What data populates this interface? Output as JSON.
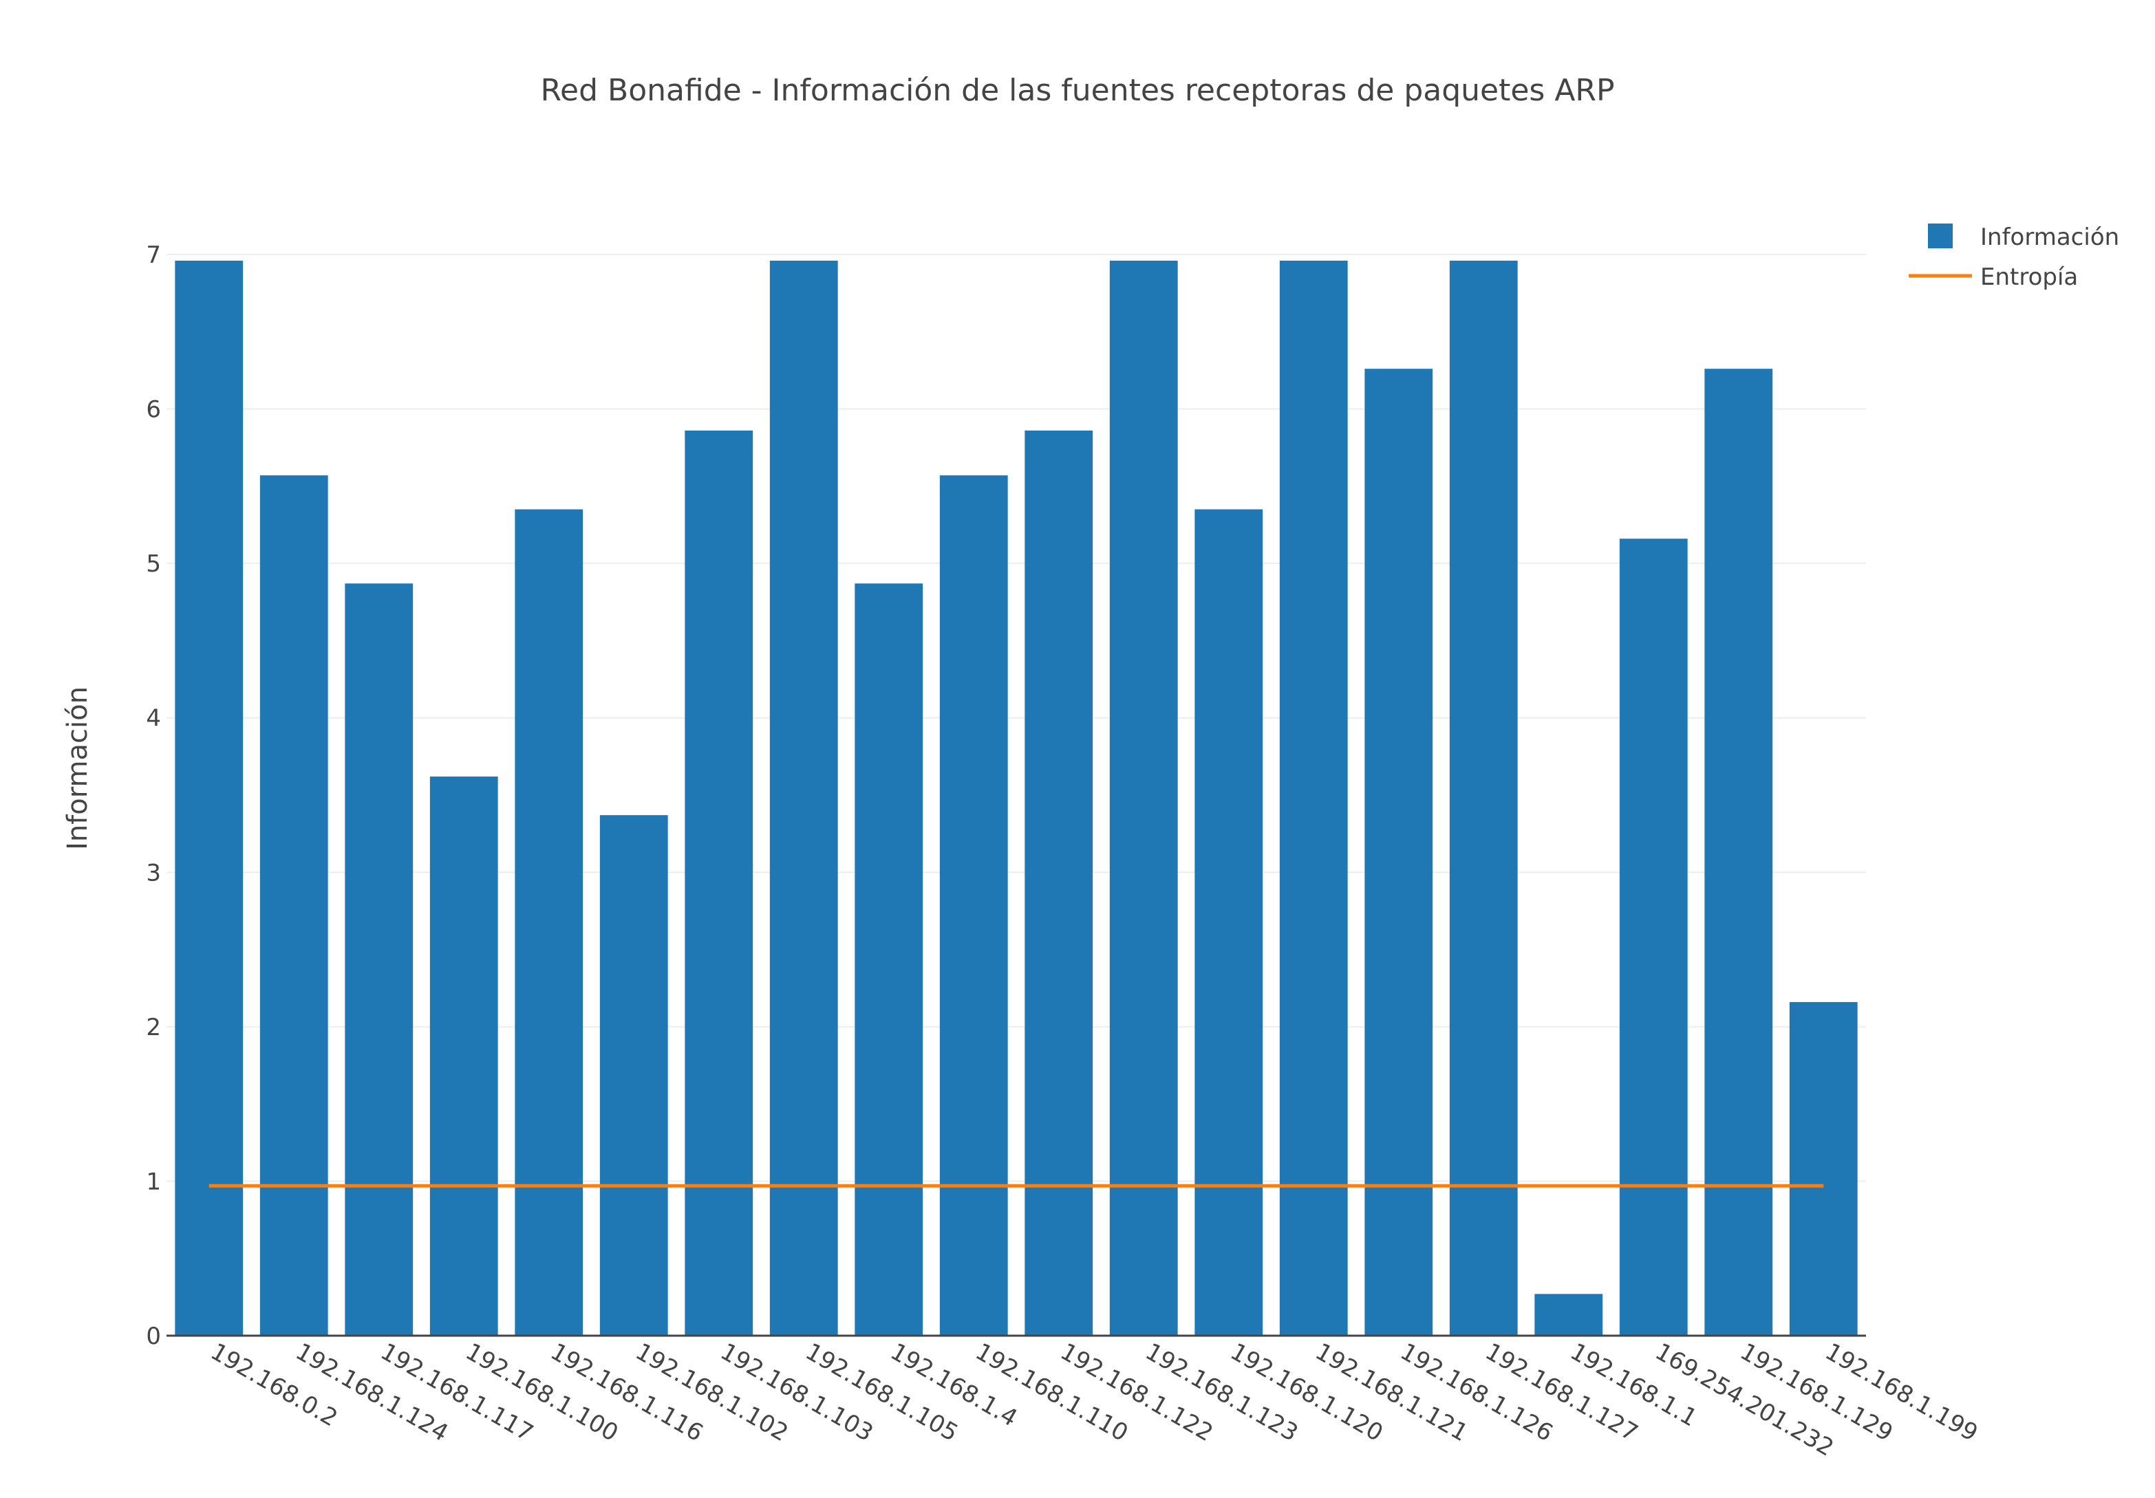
{
  "chart_data": {
    "type": "bar",
    "title": "Red Bonafide - Información de las fuentes receptoras de paquetes ARP",
    "xlabel": "",
    "ylabel": "Información",
    "ylim": [
      0,
      7
    ],
    "yticks": [
      0,
      1,
      2,
      3,
      4,
      5,
      6,
      7
    ],
    "grid": true,
    "legend_position": "top-right",
    "categories": [
      "192.168.0.2",
      "192.168.1.124",
      "192.168.1.117",
      "192.168.1.100",
      "192.168.1.116",
      "192.168.1.102",
      "192.168.1.103",
      "192.168.1.105",
      "192.168.1.4",
      "192.168.1.110",
      "192.168.1.122",
      "192.168.1.123",
      "192.168.1.120",
      "192.168.1.121",
      "192.168.1.126",
      "192.168.1.127",
      "192.168.1.1",
      "169.254.201.232",
      "192.168.1.129",
      "192.168.1.199"
    ],
    "series": [
      {
        "name": "Información",
        "type": "bar",
        "color": "#1f77b4",
        "values": [
          6.96,
          5.57,
          4.87,
          3.62,
          5.35,
          3.37,
          5.86,
          6.96,
          4.87,
          5.57,
          5.86,
          6.96,
          5.35,
          6.96,
          6.26,
          6.96,
          0.27,
          5.16,
          6.26,
          2.16
        ]
      },
      {
        "name": "Entropía",
        "type": "line",
        "color": "#ff7f0e",
        "values": [
          0.97,
          0.97,
          0.97,
          0.97,
          0.97,
          0.97,
          0.97,
          0.97,
          0.97,
          0.97,
          0.97,
          0.97,
          0.97,
          0.97,
          0.97,
          0.97,
          0.97,
          0.97,
          0.97,
          0.97
        ]
      }
    ]
  }
}
